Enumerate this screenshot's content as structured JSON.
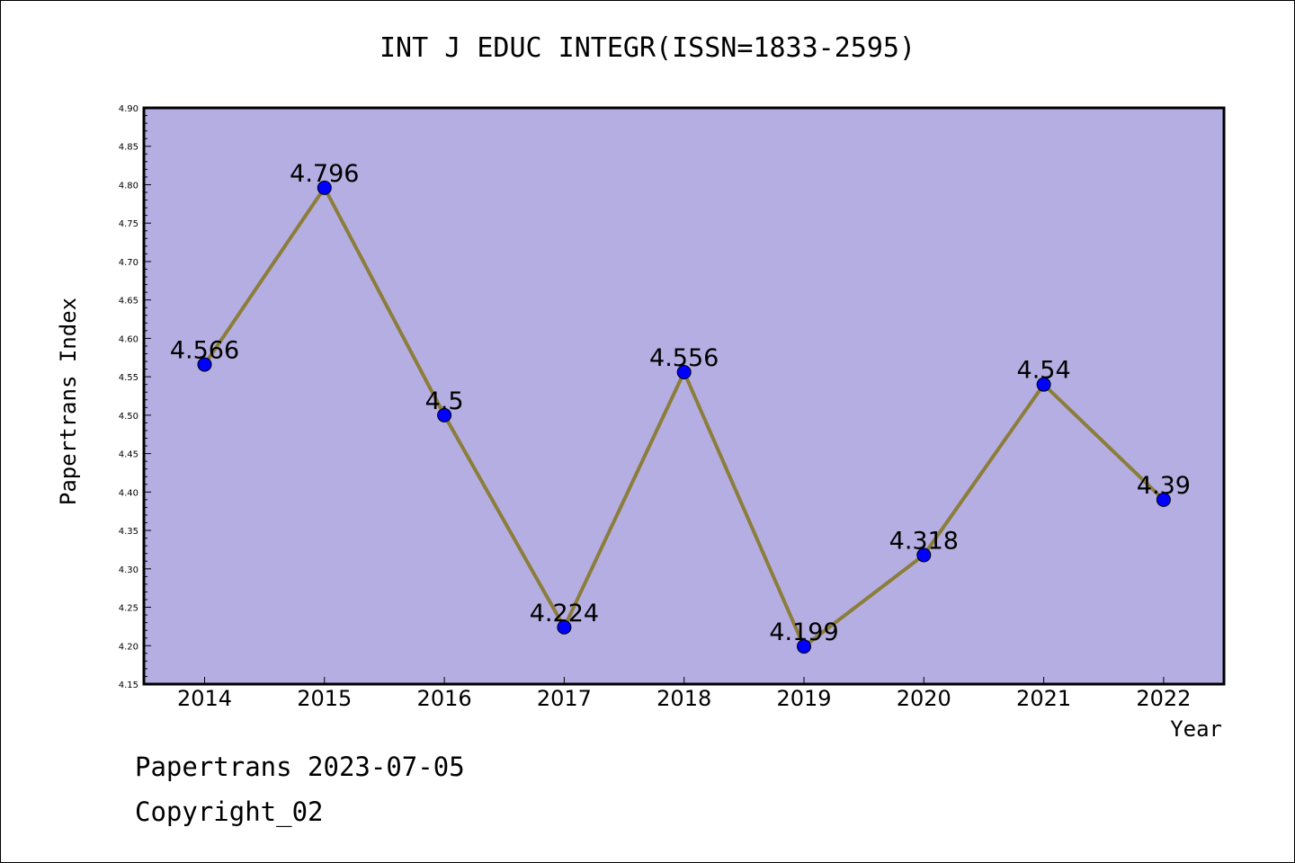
{
  "footer": {
    "date_line": "Papertrans 2023-07-05",
    "copyright": "Copyright_02"
  },
  "colors": {
    "plot_background": "#b5aee2",
    "line": "#8b7d3a",
    "marker": "#0000ff"
  },
  "chart_data": {
    "type": "line",
    "title": "INT J EDUC INTEGR(ISSN=1833-2595)",
    "xlabel": "Year",
    "ylabel": "Papertrans Index",
    "categories": [
      "2014",
      "2015",
      "2016",
      "2017",
      "2018",
      "2019",
      "2020",
      "2021",
      "2022"
    ],
    "values": [
      4.566,
      4.796,
      4.5,
      4.224,
      4.556,
      4.199,
      4.318,
      4.54,
      4.39
    ],
    "data_labels": [
      "4.566",
      "4.796",
      "4.5",
      "4.224",
      "4.556",
      "4.199",
      "4.318",
      "4.54",
      "4.39"
    ],
    "ylim": [
      4.15,
      4.9
    ],
    "yticks": [
      "4.15",
      "4.20",
      "4.25",
      "4.30",
      "4.35",
      "4.40",
      "4.45",
      "4.50",
      "4.55",
      "4.60",
      "4.65",
      "4.70",
      "4.75",
      "4.80",
      "4.85",
      "4.90"
    ],
    "grid": false,
    "legend": "none"
  }
}
